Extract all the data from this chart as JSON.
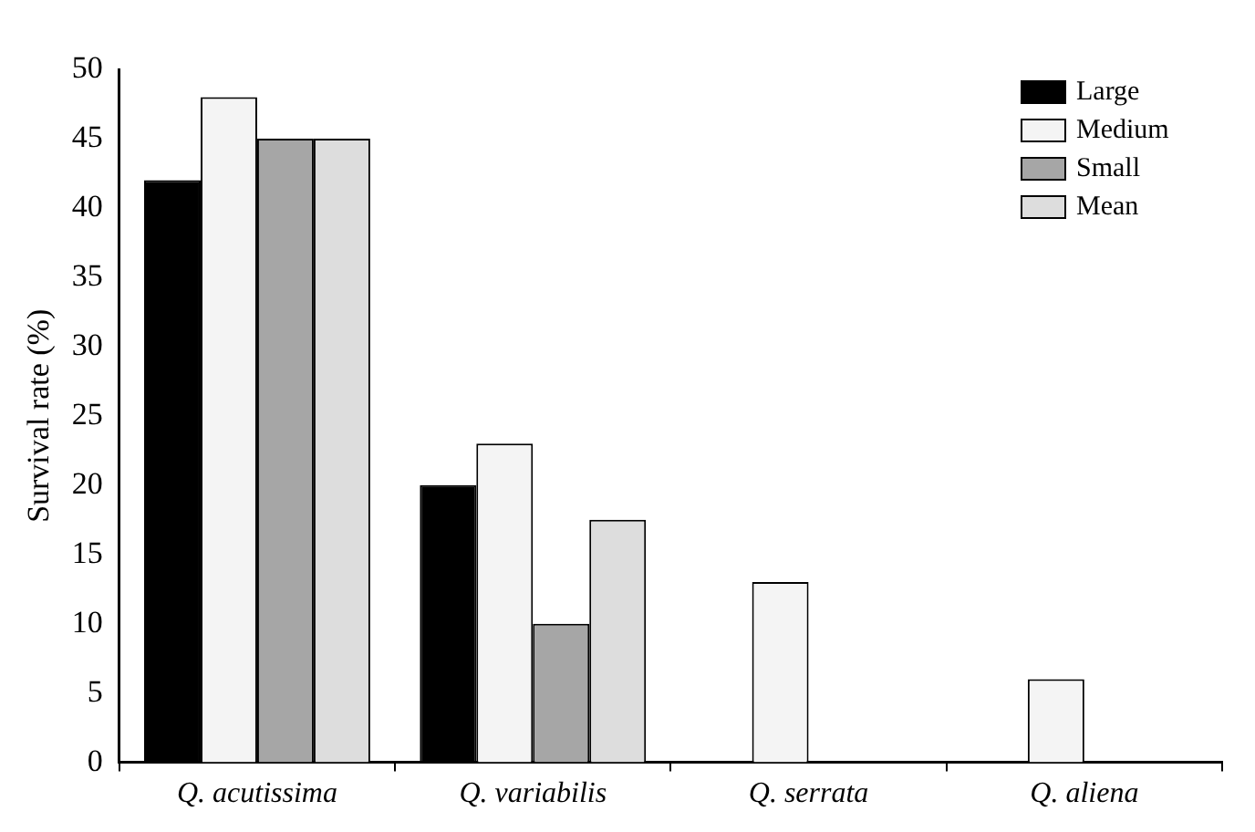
{
  "chart_data": {
    "type": "bar",
    "ylabel": "Survival rate (%)",
    "categories": [
      "Q. acutissima",
      "Q. variabilis",
      "Q. serrata",
      "Q. aliena"
    ],
    "series": [
      {
        "name": "Large",
        "color": "#000000",
        "values": [
          42,
          20,
          0,
          0
        ]
      },
      {
        "name": "Medium",
        "color": "#f4f4f4",
        "values": [
          48,
          23,
          13,
          6
        ]
      },
      {
        "name": "Small",
        "color": "#a6a6a6",
        "values": [
          45,
          10,
          0,
          0
        ]
      },
      {
        "name": "Mean",
        "color": "#dddddd",
        "values": [
          45,
          17.5,
          0,
          0
        ]
      }
    ],
    "ylim": [
      0,
      50
    ],
    "yticks": [
      0,
      5,
      10,
      15,
      20,
      25,
      30,
      35,
      40,
      45,
      50
    ],
    "grid": false,
    "legend": "top right"
  }
}
